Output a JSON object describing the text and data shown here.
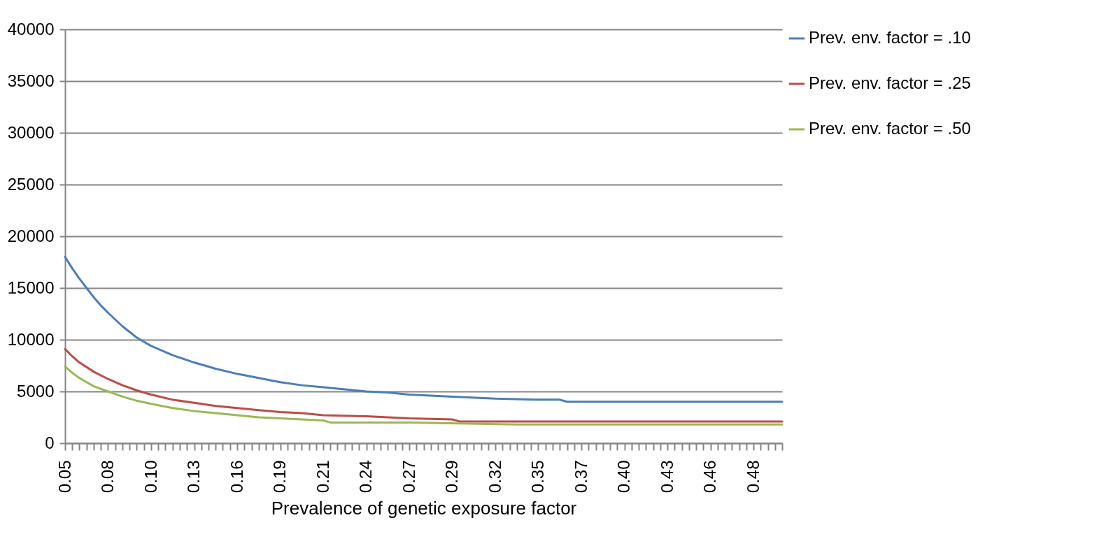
{
  "chart_data": {
    "type": "line",
    "xlabel": "Prevalence of genetic exposure factor",
    "legend": "right",
    "grid": "y",
    "line_style": "solid",
    "marker": "none",
    "xlim": [
      0.05,
      0.5
    ],
    "ylim": [
      0,
      40000
    ],
    "yticks": [
      0,
      5000,
      10000,
      15000,
      20000,
      25000,
      30000,
      35000,
      40000
    ],
    "xticks": [
      0.05,
      {
        "value": 0.0545,
        "label": null
      },
      {
        "value": 0.059,
        "label": null
      },
      {
        "value": 0.0635,
        "label": null
      },
      {
        "value": 0.068,
        "label": null
      },
      {
        "value": 0.0725,
        "label": null
      },
      {
        "value": 0.077,
        "label": "0.08"
      },
      {
        "value": 0.0815,
        "label": null
      },
      {
        "value": 0.086,
        "label": null
      },
      {
        "value": 0.0905,
        "label": null
      },
      {
        "value": 0.095,
        "label": null
      },
      {
        "value": 0.0995,
        "label": null
      },
      {
        "value": 0.104,
        "label": "0.10"
      },
      {
        "value": 0.1085,
        "label": null
      },
      {
        "value": 0.113,
        "label": null
      },
      {
        "value": 0.1175,
        "label": null
      },
      {
        "value": 0.122,
        "label": null
      },
      {
        "value": 0.1265,
        "label": null
      },
      {
        "value": 0.131,
        "label": "0.13"
      },
      {
        "value": 0.1355,
        "label": null
      },
      {
        "value": 0.14,
        "label": null
      },
      {
        "value": 0.1445,
        "label": null
      },
      {
        "value": 0.149,
        "label": null
      },
      {
        "value": 0.1535,
        "label": null
      },
      {
        "value": 0.158,
        "label": "0.16"
      },
      {
        "value": 0.1625,
        "label": null
      },
      {
        "value": 0.167,
        "label": null
      },
      {
        "value": 0.1715,
        "label": null
      },
      {
        "value": 0.176,
        "label": null
      },
      {
        "value": 0.1805,
        "label": null
      },
      {
        "value": 0.185,
        "label": "0.19"
      },
      {
        "value": 0.1895,
        "label": null
      },
      {
        "value": 0.194,
        "label": null
      },
      {
        "value": 0.1985,
        "label": null
      },
      {
        "value": 0.203,
        "label": null
      },
      {
        "value": 0.2075,
        "label": null
      },
      {
        "value": 0.212,
        "label": "0.21"
      },
      {
        "value": 0.2165,
        "label": null
      },
      {
        "value": 0.221,
        "label": null
      },
      {
        "value": 0.2255,
        "label": null
      },
      {
        "value": 0.23,
        "label": null
      },
      {
        "value": 0.2345,
        "label": null
      },
      {
        "value": 0.239,
        "label": "0.24"
      },
      {
        "value": 0.2435,
        "label": null
      },
      {
        "value": 0.248,
        "label": null
      },
      {
        "value": 0.2525,
        "label": null
      },
      {
        "value": 0.257,
        "label": null
      },
      {
        "value": 0.2615,
        "label": null
      },
      {
        "value": 0.266,
        "label": "0.27"
      },
      {
        "value": 0.2705,
        "label": null
      },
      {
        "value": 0.275,
        "label": null
      },
      {
        "value": 0.2795,
        "label": null
      },
      {
        "value": 0.284,
        "label": null
      },
      {
        "value": 0.2885,
        "label": null
      },
      {
        "value": 0.293,
        "label": "0.29"
      },
      {
        "value": 0.2975,
        "label": null
      },
      {
        "value": 0.302,
        "label": null
      },
      {
        "value": 0.3065,
        "label": null
      },
      {
        "value": 0.311,
        "label": null
      },
      {
        "value": 0.3155,
        "label": null
      },
      0.32,
      {
        "value": 0.3245,
        "label": null
      },
      {
        "value": 0.329,
        "label": null
      },
      {
        "value": 0.3335,
        "label": null
      },
      {
        "value": 0.338,
        "label": null
      },
      {
        "value": 0.3425,
        "label": null
      },
      {
        "value": 0.347,
        "label": "0.35"
      },
      {
        "value": 0.3515,
        "label": null
      },
      {
        "value": 0.356,
        "label": null
      },
      {
        "value": 0.3605,
        "label": null
      },
      {
        "value": 0.365,
        "label": null
      },
      {
        "value": 0.3695,
        "label": null
      },
      {
        "value": 0.374,
        "label": "0.37"
      },
      {
        "value": 0.3785,
        "label": null
      },
      {
        "value": 0.383,
        "label": null
      },
      {
        "value": 0.3875,
        "label": null
      },
      {
        "value": 0.392,
        "label": null
      },
      {
        "value": 0.3965,
        "label": null
      },
      {
        "value": 0.401,
        "label": "0.40"
      },
      {
        "value": 0.4055,
        "label": null
      },
      {
        "value": 0.41,
        "label": null
      },
      {
        "value": 0.4145,
        "label": null
      },
      {
        "value": 0.419,
        "label": null
      },
      {
        "value": 0.4235,
        "label": null
      },
      {
        "value": 0.428,
        "label": "0.43"
      },
      {
        "value": 0.4325,
        "label": null
      },
      {
        "value": 0.437,
        "label": null
      },
      {
        "value": 0.4415,
        "label": null
      },
      {
        "value": 0.446,
        "label": null
      },
      {
        "value": 0.4505,
        "label": null
      },
      {
        "value": 0.455,
        "label": "0.46"
      },
      {
        "value": 0.4595,
        "label": null
      },
      {
        "value": 0.464,
        "label": null
      },
      {
        "value": 0.4685,
        "label": null
      },
      {
        "value": 0.473,
        "label": null
      },
      {
        "value": 0.4775,
        "label": null
      },
      {
        "value": 0.482,
        "label": "0.48"
      },
      {
        "value": 0.4865,
        "label": null
      },
      {
        "value": 0.491,
        "label": null
      },
      {
        "value": 0.4955,
        "label": null
      },
      {
        "value": 0.5,
        "label": null
      }
    ],
    "series": [
      {
        "name": "Prev. env. factor = .10",
        "color": "#4a7ebb",
        "x": [
          0.05,
          0.0545,
          0.059,
          0.0635,
          0.068,
          0.0725,
          0.077,
          0.086,
          0.095,
          0.104,
          0.1175,
          0.131,
          0.1445,
          0.158,
          0.1715,
          0.185,
          0.1985,
          0.212,
          0.2255,
          0.239,
          0.2525,
          0.266,
          0.2795,
          0.293,
          0.32,
          0.347,
          0.3605,
          0.365,
          0.5
        ],
        "values": [
          18000,
          16900,
          15900,
          15000,
          14100,
          13300,
          12600,
          11300,
          10200,
          9400,
          8500,
          7800,
          7200,
          6700,
          6300,
          5900,
          5600,
          5400,
          5200,
          5000,
          4900,
          4700,
          4600,
          4500,
          4300,
          4200,
          4200,
          4000,
          4000
        ]
      },
      {
        "name": "Prev. env. factor = .25",
        "color": "#be4b48",
        "x": [
          0.05,
          0.0545,
          0.059,
          0.068,
          0.077,
          0.086,
          0.095,
          0.104,
          0.1175,
          0.131,
          0.1445,
          0.158,
          0.1715,
          0.185,
          0.1985,
          0.212,
          0.239,
          0.266,
          0.293,
          0.2975,
          0.5
        ],
        "values": [
          9100,
          8400,
          7800,
          6900,
          6200,
          5600,
          5100,
          4700,
          4200,
          3900,
          3600,
          3400,
          3200,
          3000,
          2900,
          2700,
          2600,
          2400,
          2300,
          2100,
          2100
        ]
      },
      {
        "name": "Prev. env. factor = .50",
        "color": "#98b954",
        "x": [
          0.05,
          0.0545,
          0.059,
          0.068,
          0.077,
          0.086,
          0.095,
          0.104,
          0.1175,
          0.131,
          0.1445,
          0.158,
          0.1715,
          0.185,
          0.212,
          0.2165,
          0.266,
          0.3335,
          0.5
        ],
        "values": [
          7400,
          6800,
          6300,
          5500,
          5000,
          4500,
          4100,
          3800,
          3400,
          3100,
          2900,
          2700,
          2500,
          2400,
          2200,
          2000,
          2000,
          1800,
          1800
        ]
      }
    ]
  }
}
